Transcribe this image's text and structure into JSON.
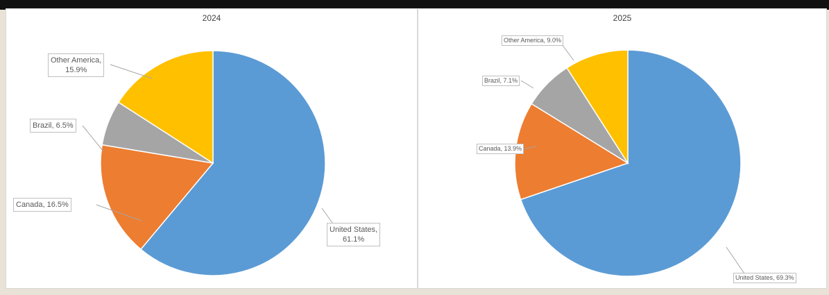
{
  "colors": {
    "United States": "#5b9bd5",
    "Canada": "#ed7d31",
    "Brazil": "#a5a5a5",
    "Other America": "#ffc000"
  },
  "chart_data": [
    {
      "type": "pie",
      "title": "2024",
      "slices": [
        {
          "label": "United States",
          "value": 61.1,
          "text": "United States,\n61.1%"
        },
        {
          "label": "Canada",
          "value": 16.5,
          "text": "Canada, 16.5%"
        },
        {
          "label": "Brazil",
          "value": 6.5,
          "text": "Brazil, 6.5%"
        },
        {
          "label": "Other America",
          "value": 15.9,
          "text": "Other America,\n15.9%"
        }
      ]
    },
    {
      "type": "pie",
      "title": "2025",
      "slices": [
        {
          "label": "United States",
          "value": 69.3,
          "text": "United States, 69.3%"
        },
        {
          "label": "Canada",
          "value": 13.9,
          "text": "Canada, 13.9%"
        },
        {
          "label": "Brazil",
          "value": 7.1,
          "text": "Brazil, 7.1%"
        },
        {
          "label": "Other America",
          "value": 9.0,
          "text": "Other America, 9.0%"
        }
      ]
    }
  ]
}
